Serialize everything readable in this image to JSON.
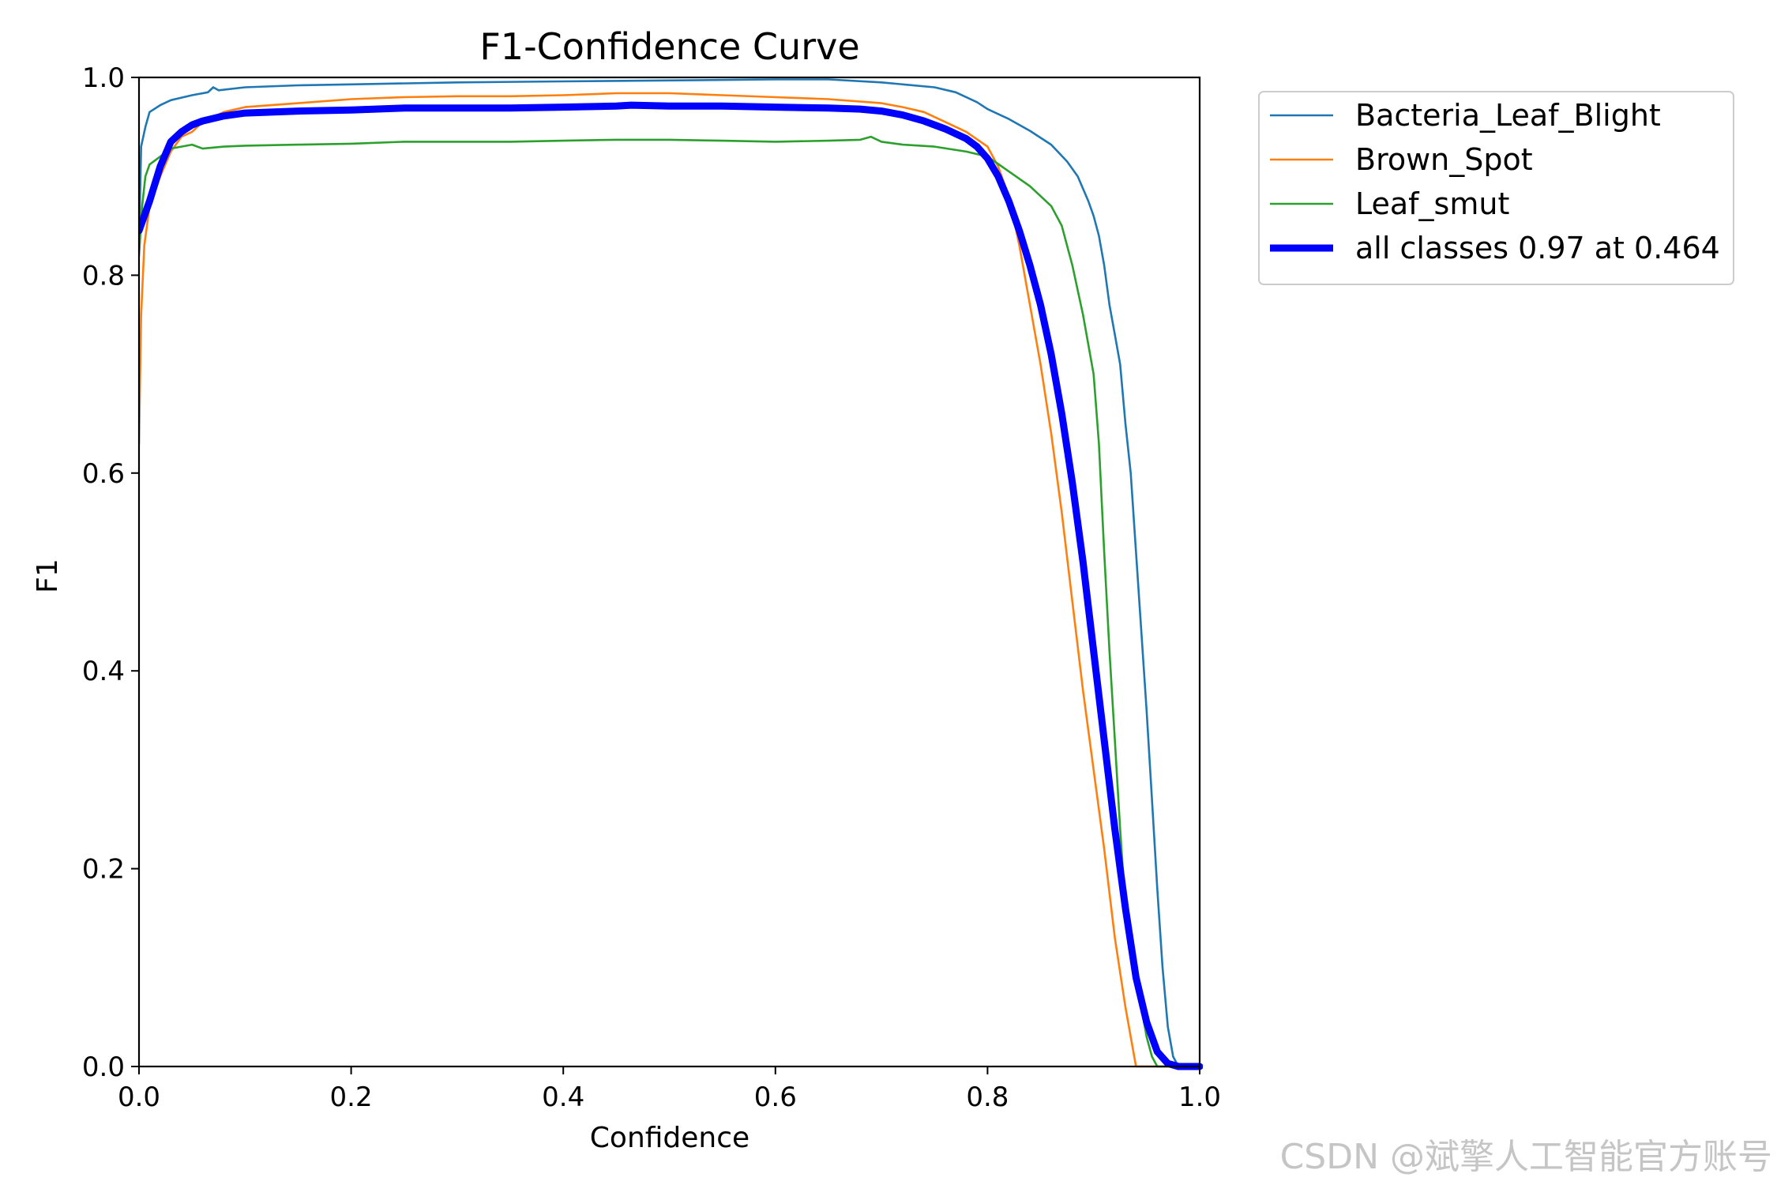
{
  "chart_data": {
    "type": "line",
    "title": "F1-Confidence Curve",
    "xlabel": "Confidence",
    "ylabel": "F1",
    "xlim": [
      0,
      1
    ],
    "ylim": [
      0,
      1
    ],
    "xticks": [
      "0.0",
      "0.2",
      "0.4",
      "0.6",
      "0.8",
      "1.0"
    ],
    "yticks": [
      "0.0",
      "0.2",
      "0.4",
      "0.6",
      "0.8",
      "1.0"
    ],
    "grid": false,
    "legend_position": "outside-top-right",
    "series": [
      {
        "name": "Bacteria_Leaf_Blight",
        "color": "#1f77b4",
        "width": "thin",
        "points": [
          [
            0.0,
            0.83
          ],
          [
            0.002,
            0.93
          ],
          [
            0.006,
            0.95
          ],
          [
            0.01,
            0.965
          ],
          [
            0.02,
            0.972
          ],
          [
            0.03,
            0.977
          ],
          [
            0.05,
            0.982
          ],
          [
            0.065,
            0.985
          ],
          [
            0.07,
            0.99
          ],
          [
            0.075,
            0.987
          ],
          [
            0.1,
            0.99
          ],
          [
            0.15,
            0.992
          ],
          [
            0.2,
            0.993
          ],
          [
            0.3,
            0.995
          ],
          [
            0.4,
            0.996
          ],
          [
            0.5,
            0.997
          ],
          [
            0.6,
            0.998
          ],
          [
            0.65,
            0.998
          ],
          [
            0.7,
            0.995
          ],
          [
            0.75,
            0.99
          ],
          [
            0.77,
            0.985
          ],
          [
            0.79,
            0.975
          ],
          [
            0.8,
            0.968
          ],
          [
            0.82,
            0.958
          ],
          [
            0.84,
            0.946
          ],
          [
            0.86,
            0.932
          ],
          [
            0.875,
            0.915
          ],
          [
            0.885,
            0.9
          ],
          [
            0.895,
            0.875
          ],
          [
            0.9,
            0.86
          ],
          [
            0.905,
            0.84
          ],
          [
            0.91,
            0.81
          ],
          [
            0.915,
            0.77
          ],
          [
            0.92,
            0.74
          ],
          [
            0.925,
            0.71
          ],
          [
            0.93,
            0.65
          ],
          [
            0.935,
            0.6
          ],
          [
            0.94,
            0.52
          ],
          [
            0.945,
            0.44
          ],
          [
            0.95,
            0.36
          ],
          [
            0.955,
            0.27
          ],
          [
            0.96,
            0.18
          ],
          [
            0.965,
            0.1
          ],
          [
            0.97,
            0.04
          ],
          [
            0.975,
            0.01
          ],
          [
            0.98,
            0.0
          ],
          [
            1.0,
            0.0
          ]
        ]
      },
      {
        "name": "Brown_Spot",
        "color": "#ff7f0e",
        "width": "thin",
        "points": [
          [
            0.0,
            0.63
          ],
          [
            0.002,
            0.76
          ],
          [
            0.005,
            0.83
          ],
          [
            0.01,
            0.87
          ],
          [
            0.02,
            0.9
          ],
          [
            0.03,
            0.925
          ],
          [
            0.04,
            0.94
          ],
          [
            0.05,
            0.945
          ],
          [
            0.06,
            0.955
          ],
          [
            0.08,
            0.965
          ],
          [
            0.1,
            0.97
          ],
          [
            0.15,
            0.974
          ],
          [
            0.2,
            0.978
          ],
          [
            0.25,
            0.98
          ],
          [
            0.3,
            0.981
          ],
          [
            0.35,
            0.981
          ],
          [
            0.4,
            0.982
          ],
          [
            0.45,
            0.984
          ],
          [
            0.5,
            0.984
          ],
          [
            0.55,
            0.982
          ],
          [
            0.6,
            0.98
          ],
          [
            0.65,
            0.978
          ],
          [
            0.7,
            0.974
          ],
          [
            0.72,
            0.97
          ],
          [
            0.74,
            0.965
          ],
          [
            0.76,
            0.955
          ],
          [
            0.78,
            0.945
          ],
          [
            0.8,
            0.93
          ],
          [
            0.81,
            0.91
          ],
          [
            0.82,
            0.88
          ],
          [
            0.83,
            0.83
          ],
          [
            0.84,
            0.77
          ],
          [
            0.85,
            0.71
          ],
          [
            0.86,
            0.64
          ],
          [
            0.87,
            0.56
          ],
          [
            0.88,
            0.47
          ],
          [
            0.89,
            0.38
          ],
          [
            0.9,
            0.3
          ],
          [
            0.91,
            0.22
          ],
          [
            0.92,
            0.13
          ],
          [
            0.93,
            0.06
          ],
          [
            0.935,
            0.03
          ],
          [
            0.94,
            0.0
          ],
          [
            1.0,
            0.0
          ]
        ]
      },
      {
        "name": "Leaf_smut",
        "color": "#2ca02c",
        "width": "thin",
        "points": [
          [
            0.0,
            0.82
          ],
          [
            0.003,
            0.87
          ],
          [
            0.006,
            0.9
          ],
          [
            0.01,
            0.912
          ],
          [
            0.02,
            0.92
          ],
          [
            0.03,
            0.928
          ],
          [
            0.04,
            0.93
          ],
          [
            0.05,
            0.932
          ],
          [
            0.06,
            0.928
          ],
          [
            0.08,
            0.93
          ],
          [
            0.1,
            0.931
          ],
          [
            0.15,
            0.932
          ],
          [
            0.2,
            0.933
          ],
          [
            0.25,
            0.935
          ],
          [
            0.3,
            0.935
          ],
          [
            0.35,
            0.935
          ],
          [
            0.4,
            0.936
          ],
          [
            0.45,
            0.937
          ],
          [
            0.5,
            0.937
          ],
          [
            0.55,
            0.936
          ],
          [
            0.6,
            0.935
          ],
          [
            0.65,
            0.936
          ],
          [
            0.68,
            0.937
          ],
          [
            0.69,
            0.94
          ],
          [
            0.7,
            0.935
          ],
          [
            0.72,
            0.932
          ],
          [
            0.75,
            0.93
          ],
          [
            0.78,
            0.925
          ],
          [
            0.8,
            0.92
          ],
          [
            0.82,
            0.905
          ],
          [
            0.84,
            0.89
          ],
          [
            0.86,
            0.87
          ],
          [
            0.87,
            0.85
          ],
          [
            0.88,
            0.81
          ],
          [
            0.89,
            0.76
          ],
          [
            0.9,
            0.7
          ],
          [
            0.905,
            0.63
          ],
          [
            0.91,
            0.52
          ],
          [
            0.915,
            0.42
          ],
          [
            0.92,
            0.33
          ],
          [
            0.925,
            0.24
          ],
          [
            0.93,
            0.16
          ],
          [
            0.935,
            0.12
          ],
          [
            0.94,
            0.09
          ],
          [
            0.945,
            0.06
          ],
          [
            0.95,
            0.03
          ],
          [
            0.955,
            0.01
          ],
          [
            0.96,
            0.0
          ],
          [
            1.0,
            0.0
          ]
        ]
      },
      {
        "name": "all classes 0.97 at 0.464",
        "color": "#0000ff",
        "width": "thick",
        "points": [
          [
            0.0,
            0.845
          ],
          [
            0.01,
            0.875
          ],
          [
            0.02,
            0.91
          ],
          [
            0.03,
            0.935
          ],
          [
            0.04,
            0.945
          ],
          [
            0.05,
            0.952
          ],
          [
            0.06,
            0.956
          ],
          [
            0.08,
            0.961
          ],
          [
            0.1,
            0.964
          ],
          [
            0.15,
            0.966
          ],
          [
            0.2,
            0.967
          ],
          [
            0.25,
            0.969
          ],
          [
            0.3,
            0.969
          ],
          [
            0.35,
            0.969
          ],
          [
            0.4,
            0.97
          ],
          [
            0.45,
            0.971
          ],
          [
            0.464,
            0.972
          ],
          [
            0.5,
            0.971
          ],
          [
            0.55,
            0.971
          ],
          [
            0.6,
            0.97
          ],
          [
            0.65,
            0.969
          ],
          [
            0.68,
            0.968
          ],
          [
            0.7,
            0.966
          ],
          [
            0.72,
            0.962
          ],
          [
            0.74,
            0.956
          ],
          [
            0.76,
            0.948
          ],
          [
            0.78,
            0.938
          ],
          [
            0.79,
            0.93
          ],
          [
            0.8,
            0.918
          ],
          [
            0.81,
            0.9
          ],
          [
            0.82,
            0.875
          ],
          [
            0.83,
            0.845
          ],
          [
            0.84,
            0.81
          ],
          [
            0.85,
            0.77
          ],
          [
            0.86,
            0.72
          ],
          [
            0.87,
            0.66
          ],
          [
            0.88,
            0.59
          ],
          [
            0.89,
            0.51
          ],
          [
            0.9,
            0.42
          ],
          [
            0.91,
            0.33
          ],
          [
            0.92,
            0.24
          ],
          [
            0.93,
            0.16
          ],
          [
            0.94,
            0.09
          ],
          [
            0.95,
            0.045
          ],
          [
            0.96,
            0.015
          ],
          [
            0.97,
            0.003
          ],
          [
            0.98,
            0.0
          ],
          [
            1.0,
            0.0
          ]
        ]
      }
    ]
  },
  "watermark": "CSDN @斌擎人工智能官方账号"
}
